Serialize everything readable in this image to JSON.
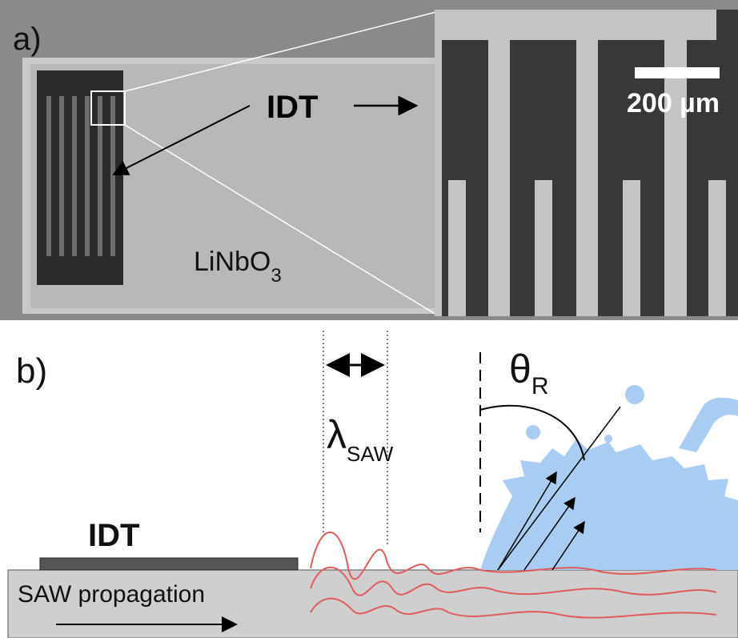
{
  "panel_a": {
    "label": "a)",
    "idt_label": "IDT",
    "scale_bar": "200 µm",
    "substrate": {
      "text": "LiNbO",
      "subscript": "3"
    }
  },
  "panel_b": {
    "label": "b)",
    "angle": {
      "symbol": "θ",
      "subscript": "R"
    },
    "wavelength": {
      "symbol": "λ",
      "subscript": "SAW"
    },
    "idt_label": "IDT",
    "propagation": "SAW propagation"
  }
}
